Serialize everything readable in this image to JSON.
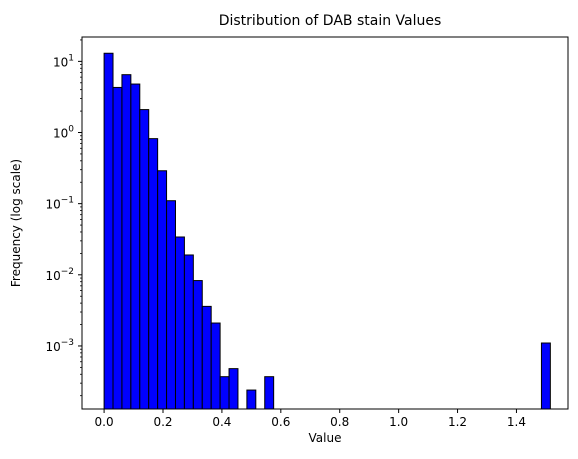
{
  "chart_data": {
    "type": "bar",
    "title": "Distribution of DAB stain Values",
    "xlabel": "Value",
    "ylabel": "Frequency (log scale)",
    "yscale": "log",
    "xlim": [
      -0.075,
      1.575
    ],
    "ylim": [
      0.00013,
      22
    ],
    "grid": false,
    "bar_color": "#0000ff",
    "edge_color": "#000000",
    "bin_width": 0.0303,
    "x_ticks": [
      {
        "value": 0.0,
        "label": "0.0"
      },
      {
        "value": 0.2,
        "label": "0.2"
      },
      {
        "value": 0.4,
        "label": "0.4"
      },
      {
        "value": 0.6,
        "label": "0.6"
      },
      {
        "value": 0.8,
        "label": "0.8"
      },
      {
        "value": 1.0,
        "label": "1.0"
      },
      {
        "value": 1.2,
        "label": "1.2"
      },
      {
        "value": 1.4,
        "label": "1.4"
      }
    ],
    "y_ticks": [
      {
        "value": 0.001,
        "base": "10",
        "exp": "−3"
      },
      {
        "value": 0.01,
        "base": "10",
        "exp": "−2"
      },
      {
        "value": 0.1,
        "base": "10",
        "exp": "−1"
      },
      {
        "value": 1,
        "base": "10",
        "exp": "0"
      },
      {
        "value": 10,
        "base": "10",
        "exp": "1"
      }
    ],
    "bins": [
      {
        "x": 0.0,
        "y": 13.0
      },
      {
        "x": 0.0303,
        "y": 4.3
      },
      {
        "x": 0.0606,
        "y": 6.5
      },
      {
        "x": 0.0909,
        "y": 4.8
      },
      {
        "x": 0.1212,
        "y": 2.1
      },
      {
        "x": 0.1515,
        "y": 0.82
      },
      {
        "x": 0.1818,
        "y": 0.29
      },
      {
        "x": 0.2121,
        "y": 0.11
      },
      {
        "x": 0.2424,
        "y": 0.034
      },
      {
        "x": 0.2727,
        "y": 0.019
      },
      {
        "x": 0.303,
        "y": 0.0083
      },
      {
        "x": 0.3333,
        "y": 0.0036
      },
      {
        "x": 0.3636,
        "y": 0.0021
      },
      {
        "x": 0.3939,
        "y": 0.00037
      },
      {
        "x": 0.4242,
        "y": 0.00048
      },
      {
        "x": 0.4848,
        "y": 0.00024
      },
      {
        "x": 0.5454,
        "y": 0.00037
      },
      {
        "x": 1.4848,
        "y": 0.0011
      }
    ]
  }
}
